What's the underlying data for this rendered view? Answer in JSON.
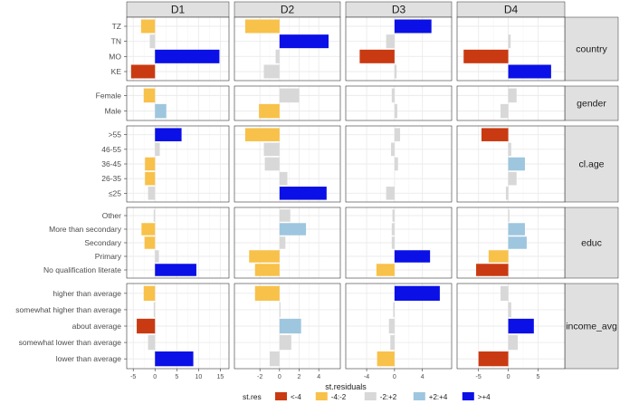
{
  "chart_data": {
    "type": "bar",
    "orientation": "horizontal",
    "facet_columns": [
      {
        "label": "D1",
        "xlim": [
          -6.5,
          17
        ],
        "ticks": [
          -5,
          0,
          5,
          10,
          15
        ]
      },
      {
        "label": "D2",
        "xlim": [
          -4.6,
          6.2
        ],
        "ticks": [
          -2,
          0,
          2,
          4
        ]
      },
      {
        "label": "D3",
        "xlim": [
          -7,
          8.2
        ],
        "ticks": [
          -4,
          0,
          4
        ]
      },
      {
        "label": "D4",
        "xlim": [
          -8.6,
          9.5
        ],
        "ticks": [
          -5,
          0,
          5
        ]
      }
    ],
    "facet_rows": [
      {
        "label": "country",
        "categories": [
          "TZ",
          "TN",
          "MO",
          "KE"
        ],
        "values": [
          [
            -3.2,
            -1.2,
            14.8,
            -5.5
          ],
          [
            -3.5,
            5,
            -0.4,
            -1.6
          ],
          [
            5.3,
            -1.2,
            -5,
            0.3
          ],
          [
            0,
            0.4,
            -7.5,
            7.2
          ]
        ]
      },
      {
        "label": "gender",
        "categories": [
          "Female",
          "Male"
        ],
        "values": [
          [
            -2.6,
            2.6
          ],
          [
            2,
            -2.1
          ],
          [
            -0.4,
            0.4
          ],
          [
            1.4,
            -1.3
          ]
        ]
      },
      {
        "label": "cl.age",
        "categories": [
          ">55",
          "46-55",
          "36-45",
          "26-35",
          "≤25"
        ],
        "values": [
          [
            6.1,
            1.1,
            -2.3,
            -2.3,
            -1.6
          ],
          [
            -3.5,
            -1.6,
            -1.5,
            0.8,
            4.8
          ],
          [
            0.8,
            -0.5,
            0.5,
            0,
            -1.2
          ],
          [
            -4.5,
            0.5,
            2.8,
            1.4,
            -0.4
          ]
        ]
      },
      {
        "label": "educ",
        "categories": [
          "Other",
          "More than secondary",
          "Secondary",
          "Primary",
          "No qualification literate"
        ],
        "values": [
          [
            -0.3,
            -3.1,
            -2.4,
            0.9,
            9.5
          ],
          [
            1.1,
            2.7,
            0.6,
            -3.1,
            -2.5
          ],
          [
            -0.3,
            -0.4,
            -0.4,
            5.1,
            -2.6
          ],
          [
            0.2,
            2.8,
            3.1,
            -3.3,
            -5.4
          ]
        ]
      },
      {
        "label": "income_avg",
        "categories": [
          "higher than average",
          "somewhat higher than average",
          "about average",
          "somewhat lower than average",
          "lower than average"
        ],
        "values": [
          [
            -2.6,
            -0.3,
            -4.2,
            -1.6,
            8.8
          ],
          [
            -2.5,
            0.1,
            2.2,
            1.2,
            -1
          ],
          [
            6.5,
            -0.2,
            -0.8,
            -0.6,
            -2.5
          ],
          [
            -1.3,
            0.5,
            4.3,
            1.6,
            -5
          ]
        ]
      }
    ],
    "xlabel": "st.residuals",
    "legend": {
      "title": "st.res",
      "position": "bottom",
      "items": [
        {
          "label": "<-4",
          "color": "#c93a12"
        },
        {
          "label": "-4:-2",
          "color": "#f8c14a"
        },
        {
          "label": "-2:+2",
          "color": "#d8d8d8"
        },
        {
          "label": "+2:+4",
          "color": "#9ec6df"
        },
        {
          "label": ">+4",
          "color": "#0a10e6"
        }
      ]
    },
    "grid": true
  }
}
